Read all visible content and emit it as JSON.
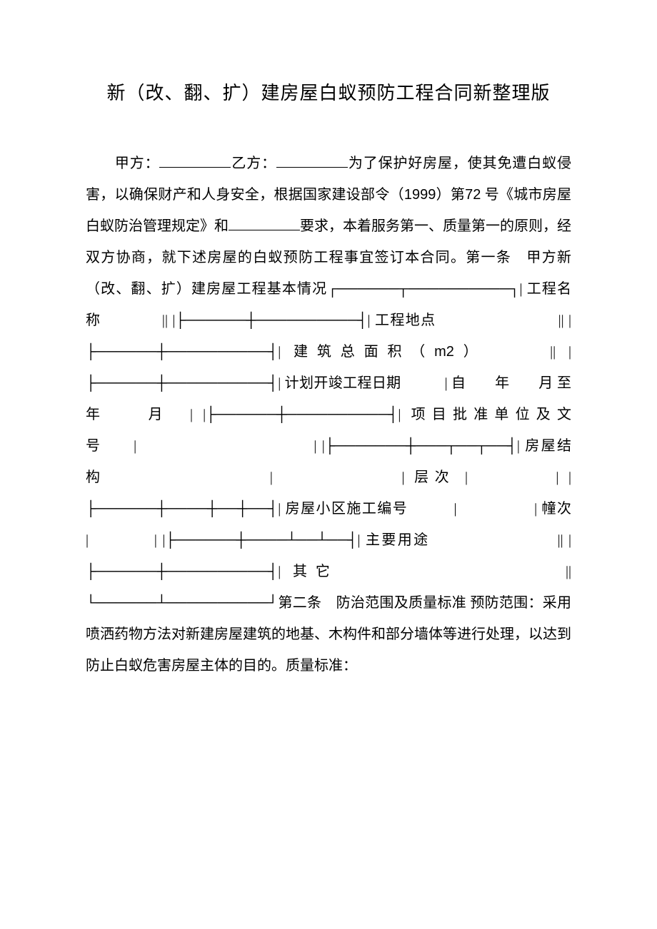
{
  "title": "新（改、翻、扩）建房屋白蚁预防工程合同新整理版",
  "intro_prefix": "甲方：",
  "intro_mid": "乙方：",
  "intro_1": "为了保护好房屋，使其免遭白蚁侵害，以确保财产和人身安全，根据国家建设部令（",
  "year": "1999",
  "intro_2": "）第",
  "num72": "72",
  "intro_3": " 号《城市房屋白蚁防治管理规定》和",
  "intro_4": "要求，本着服务第一、质量第一的原则，经双方协商，就下述房屋的白蚁预防工程事宜签订本合同。第一条　甲方新（改、翻、扩）建房屋工程基本情况┌──────┬──────────┐| 工程名称　　　　|",
  "row_loc": "| |├──────┼──────────┤| 工程地点　　　　　　　　|",
  "row_area_1": "| |├──────┼──────────┤| 建筑总面积（",
  "m2": "m2",
  "row_area_2": "）　　　|",
  "row_date": "| |├──────┼──────────┤| 计划开竣工程日期　　　| 自　　年　　月 至　　年　　月　| |├──────┼──────────┤| 项目批准单位及文号　　|　　　　　　　　　　　| |├───────┼───┬──┬──┤| 房屋结构　　　　　　　　|　　　　　　| 层次 |　　　　| |├──────┼────┼──┼──┤| 房屋小区施工编号　　　|　　　　　| 幢次 |　　　　| |├──────┼────┴──┴──┤| 主要用途　　　　　　　　|",
  "row_other": "| |├──────┼──────────┤| 其它　　　　　　　　　　|",
  "row_end": "| └──────┴──────────┘第二条　防治范围及质量标准 预防范围：采用喷洒药物方法对新建房屋建筑的地基、木构件和部分墙体等进行处理，以达到防止白蚁危害房屋主体的目的。质量标准："
}
